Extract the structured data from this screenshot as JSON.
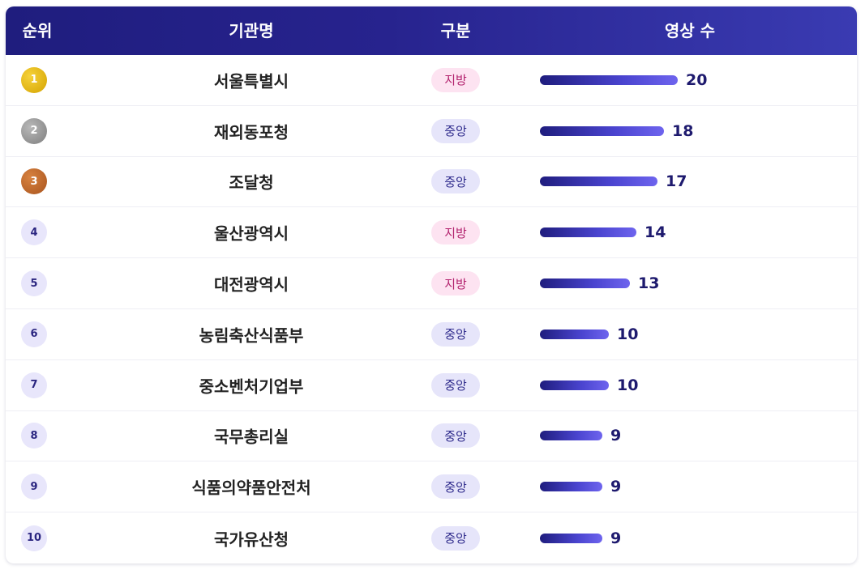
{
  "header": {
    "rank": "순위",
    "org": "기관명",
    "type": "구분",
    "count": "영상 수"
  },
  "colors": {
    "header": "#1f1d7e",
    "gold": "#d4a300",
    "silver": "#7e7e7e",
    "bronze": "#a8541e",
    "local_badge_bg": "#fde3f1",
    "central_badge_bg": "#e6e5fa",
    "bar": "#4a44cf"
  },
  "rows": [
    {
      "rank": "1",
      "medal": "gold",
      "org": "서울특별시",
      "type": "지방",
      "kind": "local",
      "count": 20
    },
    {
      "rank": "2",
      "medal": "silver",
      "org": "재외동포청",
      "type": "중앙",
      "kind": "central",
      "count": 18
    },
    {
      "rank": "3",
      "medal": "bronze",
      "org": "조달청",
      "type": "중앙",
      "kind": "central",
      "count": 17
    },
    {
      "rank": "4",
      "medal": "",
      "org": "울산광역시",
      "type": "지방",
      "kind": "local",
      "count": 14
    },
    {
      "rank": "5",
      "medal": "",
      "org": "대전광역시",
      "type": "지방",
      "kind": "local",
      "count": 13
    },
    {
      "rank": "6",
      "medal": "",
      "org": "농림축산식품부",
      "type": "중앙",
      "kind": "central",
      "count": 10
    },
    {
      "rank": "7",
      "medal": "",
      "org": "중소벤처기업부",
      "type": "중앙",
      "kind": "central",
      "count": 10
    },
    {
      "rank": "8",
      "medal": "",
      "org": "국무총리실",
      "type": "중앙",
      "kind": "central",
      "count": 9
    },
    {
      "rank": "9",
      "medal": "",
      "org": "식품의약품안전처",
      "type": "중앙",
      "kind": "central",
      "count": 9
    },
    {
      "rank": "10",
      "medal": "",
      "org": "국가유산청",
      "type": "중앙",
      "kind": "central",
      "count": 9
    }
  ]
}
